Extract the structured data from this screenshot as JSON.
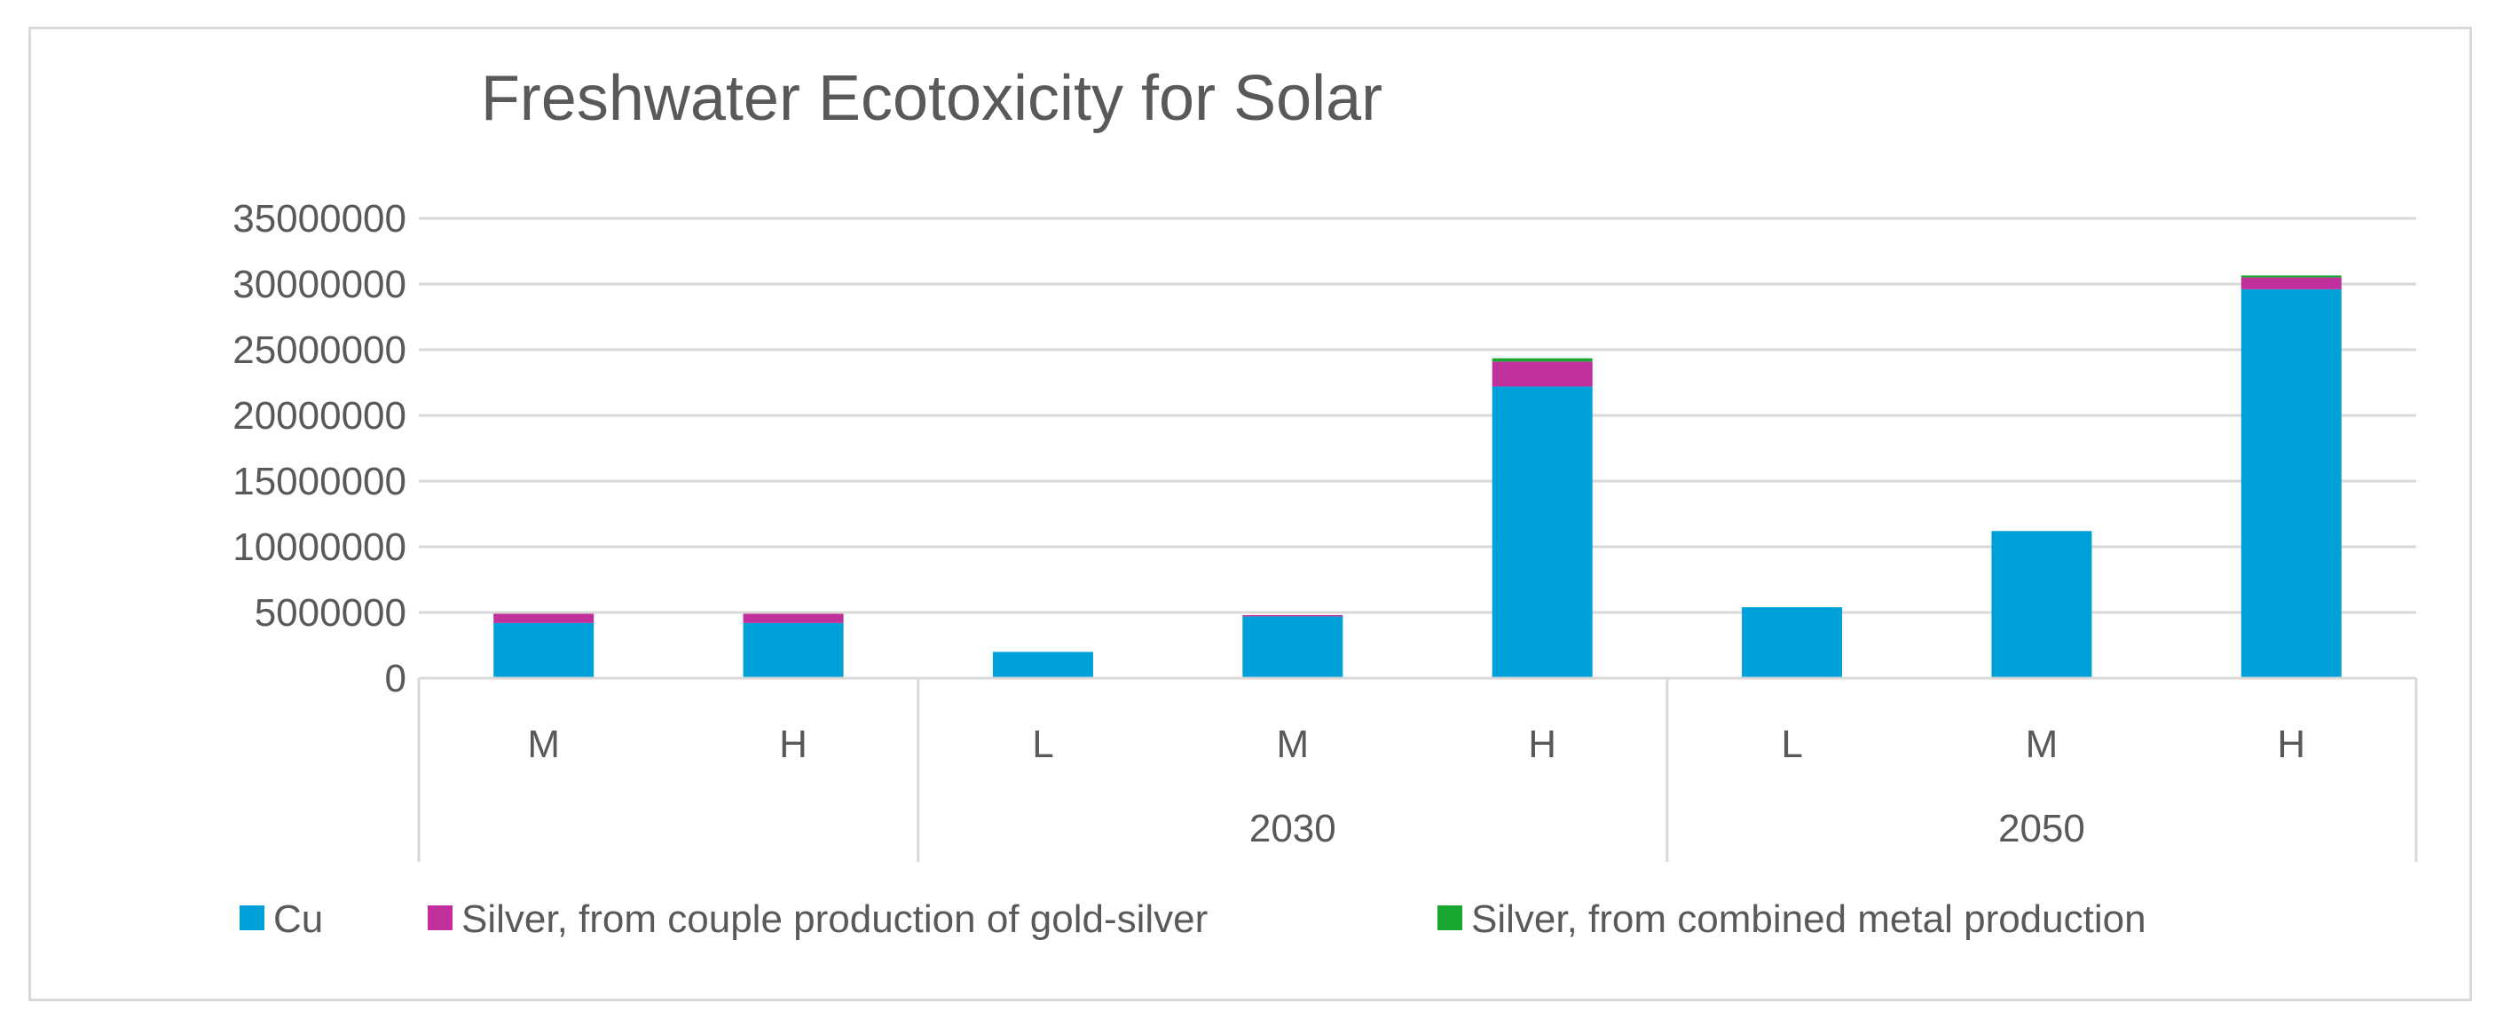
{
  "chart_data": {
    "type": "bar",
    "stacked": true,
    "title": "Freshwater Ecotoxicity for Solar",
    "xlabel": "",
    "ylabel": "",
    "ylim": [
      0,
      35000000
    ],
    "yticks": [
      0,
      5000000,
      10000000,
      15000000,
      20000000,
      25000000,
      30000000,
      35000000
    ],
    "ytick_labels": [
      "0",
      "5000000",
      "10000000",
      "15000000",
      "20000000",
      "25000000",
      "30000000",
      "35000000"
    ],
    "grid": true,
    "categories": [
      "M",
      "H",
      "L",
      "M",
      "H",
      "L",
      "M",
      "H"
    ],
    "category_groups": [
      {
        "label": "",
        "start": 0,
        "end": 1
      },
      {
        "label": "2030",
        "start": 2,
        "end": 4
      },
      {
        "label": "2050",
        "start": 5,
        "end": 7
      }
    ],
    "series": [
      {
        "name": "Cu",
        "color": "#00a0d8",
        "values": [
          4200000,
          4200000,
          2000000,
          4700000,
          22200000,
          5400000,
          11200000,
          29600000
        ]
      },
      {
        "name": "Silver, from couple production of gold-silver",
        "color": "#c0309c",
        "values": [
          700000,
          700000,
          0,
          100000,
          1900000,
          0,
          0,
          900000
        ]
      },
      {
        "name": "Silver, from combined metal production",
        "color": "#19a631",
        "values": [
          0,
          0,
          0,
          0,
          250000,
          0,
          0,
          150000
        ]
      }
    ],
    "legend": {
      "position": "bottom"
    }
  }
}
